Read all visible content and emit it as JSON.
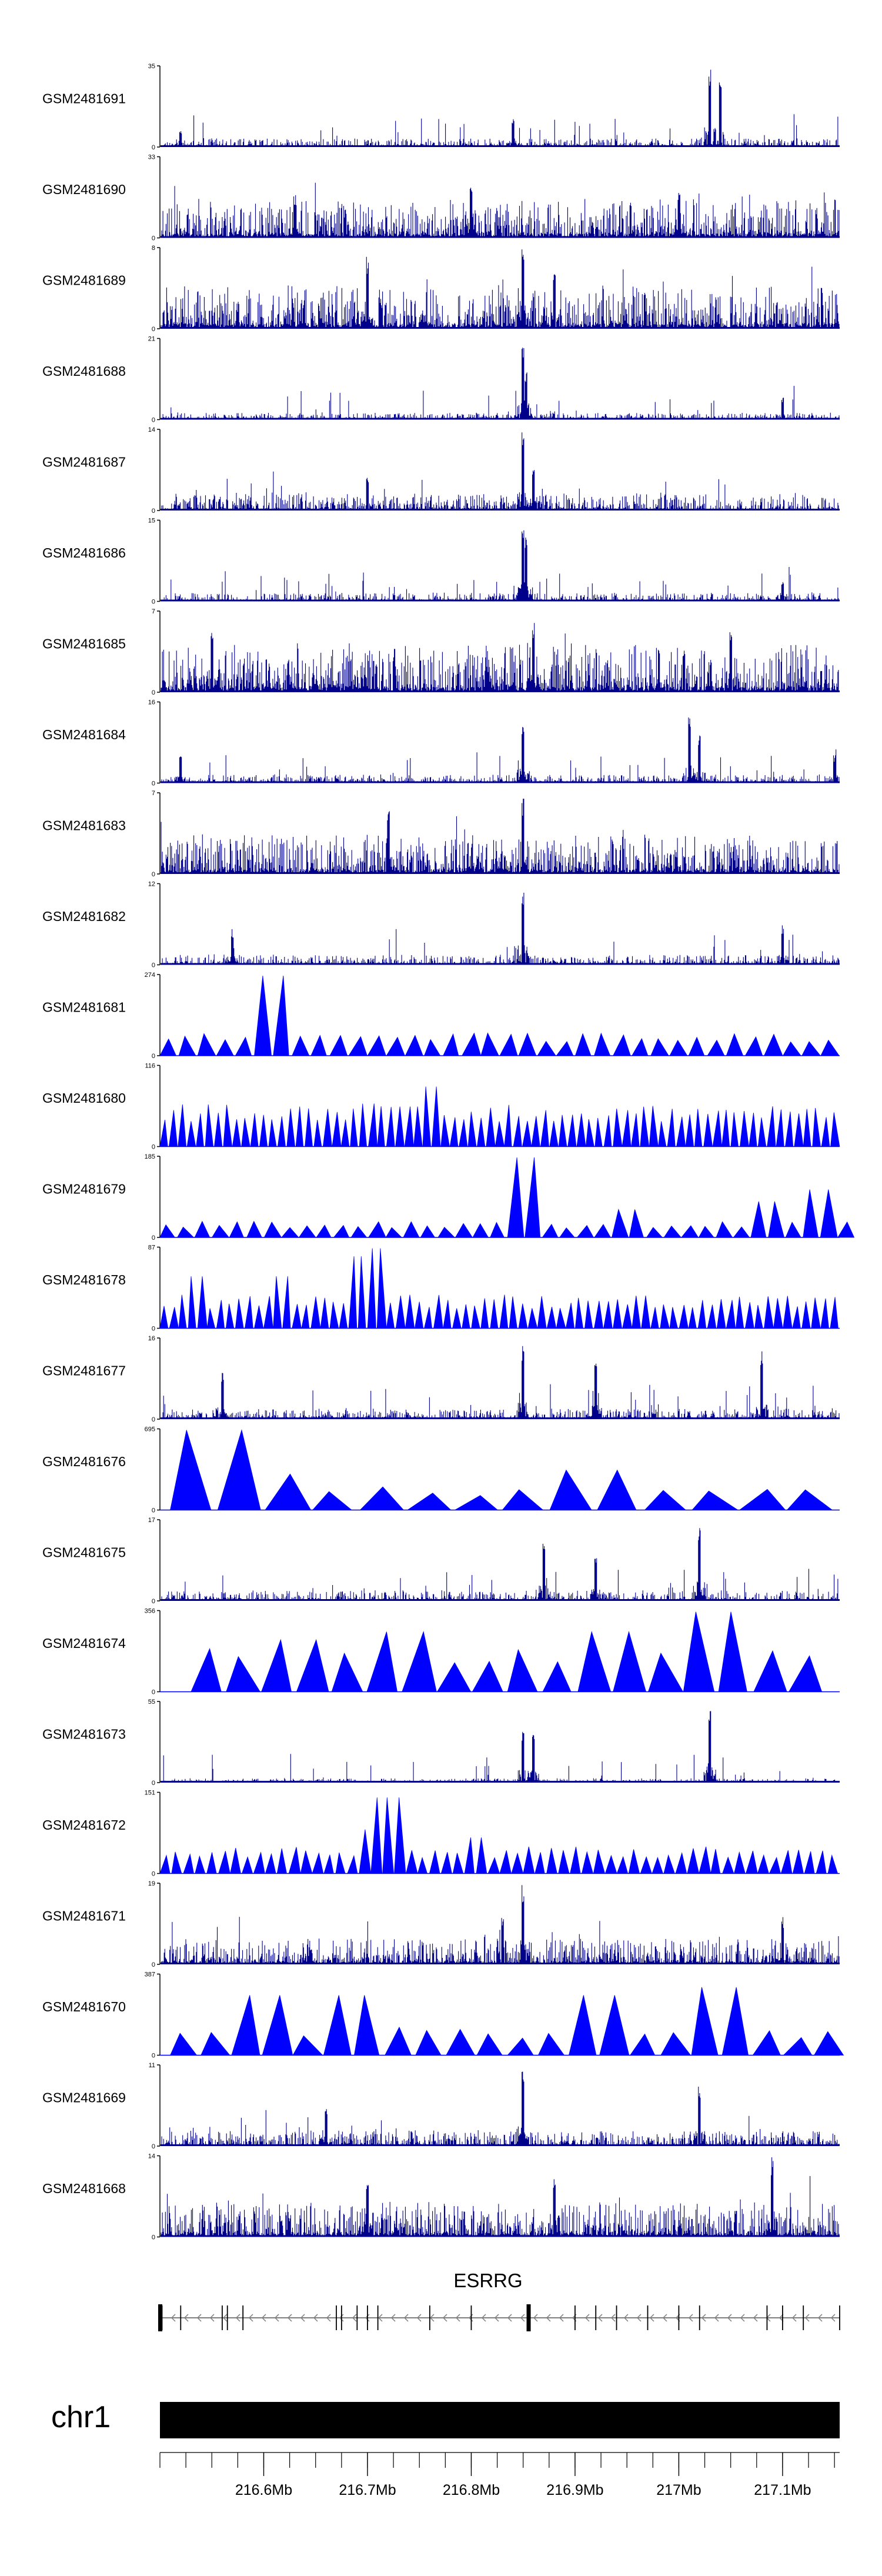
{
  "chart_data": {
    "type": "genome-tracks",
    "tracks": [
      {
        "name": "GSM2481691",
        "ymax": 35,
        "style": "bars",
        "noise": 0.1,
        "seed": 11,
        "peaks": [
          [
            216.84,
            0.38
          ],
          [
            217.03,
            1.0
          ],
          [
            217.04,
            0.85
          ],
          [
            216.52,
            0.22
          ]
        ]
      },
      {
        "name": "GSM2481690",
        "ymax": 33,
        "style": "bars",
        "noise": 0.45,
        "seed": 23,
        "peaks": [
          [
            216.8,
            0.7
          ],
          [
            217.0,
            0.6
          ],
          [
            216.63,
            0.55
          ]
        ]
      },
      {
        "name": "GSM2481689",
        "ymax": 8,
        "style": "bars",
        "noise": 0.5,
        "seed": 37,
        "peaks": [
          [
            216.85,
            1.0
          ],
          [
            216.7,
            0.9
          ],
          [
            216.88,
            0.75
          ]
        ]
      },
      {
        "name": "GSM2481688",
        "ymax": 21,
        "style": "bars",
        "noise": 0.08,
        "seed": 41,
        "peaks": [
          [
            216.85,
            1.0
          ],
          [
            216.853,
            0.6
          ],
          [
            217.1,
            0.28
          ]
        ]
      },
      {
        "name": "GSM2481687",
        "ymax": 14,
        "style": "bars",
        "noise": 0.2,
        "seed": 53,
        "peaks": [
          [
            216.85,
            1.0
          ],
          [
            216.86,
            0.55
          ],
          [
            216.7,
            0.45
          ]
        ]
      },
      {
        "name": "GSM2481686",
        "ymax": 15,
        "style": "bars",
        "noise": 0.1,
        "seed": 67,
        "peaks": [
          [
            216.85,
            1.0
          ],
          [
            216.853,
            0.8
          ],
          [
            217.1,
            0.25
          ]
        ]
      },
      {
        "name": "GSM2481685",
        "ymax": 7,
        "style": "bars",
        "noise": 0.55,
        "seed": 71,
        "peaks": [
          [
            216.86,
            0.9
          ],
          [
            216.55,
            0.85
          ],
          [
            217.05,
            0.8
          ]
        ]
      },
      {
        "name": "GSM2481684",
        "ymax": 16,
        "style": "bars",
        "noise": 0.1,
        "seed": 83,
        "peaks": [
          [
            216.85,
            0.75
          ],
          [
            217.01,
            0.9
          ],
          [
            217.02,
            0.6
          ],
          [
            216.52,
            0.35
          ],
          [
            217.15,
            0.35
          ]
        ]
      },
      {
        "name": "GSM2481683",
        "ymax": 7,
        "style": "bars",
        "noise": 0.45,
        "seed": 97,
        "peaks": [
          [
            216.85,
            0.95
          ],
          [
            216.72,
            0.85
          ],
          [
            216.5,
            0.8
          ]
        ]
      },
      {
        "name": "GSM2481682",
        "ymax": 12,
        "style": "bars",
        "noise": 0.12,
        "seed": 101,
        "peaks": [
          [
            216.85,
            1.0
          ],
          [
            217.1,
            0.5
          ],
          [
            216.57,
            0.45
          ]
        ]
      },
      {
        "name": "GSM2481681",
        "ymax": 274,
        "style": "tri",
        "count": 36,
        "base": 0.24,
        "seed": 103,
        "big": [
          [
            216.6,
            1.0
          ]
        ]
      },
      {
        "name": "GSM2481680",
        "ymax": 116,
        "style": "tri",
        "count": 75,
        "base": 0.45,
        "seed": 107,
        "big": [
          [
            216.76,
            0.75
          ],
          [
            216.74,
            0.5
          ]
        ]
      },
      {
        "name": "GSM2481679",
        "ymax": 185,
        "style": "tri",
        "count": 40,
        "base": 0.17,
        "seed": 109,
        "big": [
          [
            216.85,
            1.0
          ],
          [
            217.13,
            0.6
          ],
          [
            217.09,
            0.45
          ],
          [
            216.95,
            0.35
          ]
        ],
        "start": 216.5,
        "end": 217.17
      },
      {
        "name": "GSM2481678",
        "ymax": 87,
        "style": "tri",
        "count": 72,
        "base": 0.35,
        "seed": 113,
        "big": [
          [
            216.71,
            1.0
          ],
          [
            216.69,
            0.9
          ],
          [
            216.62,
            0.65
          ],
          [
            216.54,
            0.65
          ]
        ]
      },
      {
        "name": "GSM2481677",
        "ymax": 16,
        "style": "bars",
        "noise": 0.12,
        "seed": 127,
        "peaks": [
          [
            216.85,
            0.95
          ],
          [
            217.08,
            0.9
          ],
          [
            216.56,
            0.6
          ],
          [
            216.92,
            0.7
          ]
        ]
      },
      {
        "name": "GSM2481676",
        "ymax": 695,
        "style": "tri",
        "count": 14,
        "base": 0.25,
        "seed": 131,
        "big": [
          [
            216.56,
            1.0
          ],
          [
            216.9,
            0.5
          ],
          [
            216.6,
            0.45
          ]
        ],
        "start": 216.51,
        "end": 217.15
      },
      {
        "name": "GSM2481675",
        "ymax": 17,
        "style": "bars",
        "noise": 0.12,
        "seed": 137,
        "peaks": [
          [
            217.02,
            1.0
          ],
          [
            216.87,
            0.8
          ],
          [
            216.92,
            0.6
          ]
        ]
      },
      {
        "name": "GSM2481674",
        "ymax": 356,
        "style": "tri",
        "count": 18,
        "base": 0.45,
        "seed": 139,
        "big": [
          [
            217.04,
            1.0
          ],
          [
            216.94,
            0.75
          ],
          [
            216.72,
            0.75
          ],
          [
            216.63,
            0.65
          ],
          [
            217.09,
            0.45
          ]
        ],
        "start": 216.53,
        "end": 217.14
      },
      {
        "name": "GSM2481673",
        "ymax": 55,
        "style": "bars",
        "noise": 0.05,
        "seed": 149,
        "peaks": [
          [
            217.03,
            1.0
          ],
          [
            216.85,
            0.7
          ],
          [
            216.86,
            0.6
          ]
        ]
      },
      {
        "name": "GSM2481672",
        "ymax": 151,
        "style": "tri",
        "count": 58,
        "base": 0.28,
        "seed": 151,
        "big": [
          [
            216.72,
            0.95
          ],
          [
            216.71,
            0.55
          ],
          [
            216.8,
            0.45
          ]
        ]
      },
      {
        "name": "GSM2481671",
        "ymax": 19,
        "style": "bars",
        "noise": 0.3,
        "seed": 157,
        "peaks": [
          [
            216.85,
            1.0
          ],
          [
            216.83,
            0.6
          ],
          [
            217.1,
            0.6
          ]
        ]
      },
      {
        "name": "GSM2481670",
        "ymax": 387,
        "style": "tri",
        "count": 22,
        "base": 0.3,
        "seed": 163,
        "big": [
          [
            216.69,
            0.75
          ],
          [
            216.61,
            0.75
          ],
          [
            216.93,
            0.75
          ],
          [
            217.03,
            0.85
          ]
        ],
        "start": 216.51,
        "end": 217.16
      },
      {
        "name": "GSM2481669",
        "ymax": 11,
        "style": "bars",
        "noise": 0.18,
        "seed": 167,
        "peaks": [
          [
            216.85,
            1.0
          ],
          [
            217.02,
            0.75
          ],
          [
            216.66,
            0.5
          ]
        ]
      },
      {
        "name": "GSM2481668",
        "ymax": 14,
        "style": "bars",
        "noise": 0.4,
        "seed": 173,
        "peaks": [
          [
            217.09,
            1.0
          ],
          [
            216.7,
            0.7
          ],
          [
            216.88,
            0.75
          ]
        ]
      }
    ],
    "ymin_label": "0",
    "gene": {
      "name": "ESRRG",
      "start": 216.5,
      "end": 217.155,
      "exons": [
        216.5,
        216.502,
        216.52,
        216.56,
        216.565,
        216.58,
        216.67,
        216.675,
        216.69,
        216.7,
        216.71,
        216.76,
        216.8,
        216.855,
        216.9,
        216.92,
        216.94,
        216.97,
        217.0,
        217.02,
        217.085,
        217.1,
        217.12,
        217.155
      ],
      "thick_exons": [
        216.5,
        216.855
      ]
    },
    "chromosome": "chr1",
    "axis": {
      "range": [
        216.5,
        217.155
      ],
      "ticks": [
        216.6,
        216.7,
        216.8,
        216.9,
        217.0,
        217.1
      ],
      "tick_labels": [
        "216.6Mb",
        "216.7Mb",
        "216.8Mb",
        "216.9Mb",
        "217Mb",
        "217.1Mb"
      ],
      "minor_step": 0.025
    },
    "colors": {
      "bars": "#00008b",
      "triangles": "#0000ff",
      "axis": "#000000",
      "gene": "#7f7f7f",
      "exon": "#000000",
      "chrom": "#000000"
    }
  }
}
